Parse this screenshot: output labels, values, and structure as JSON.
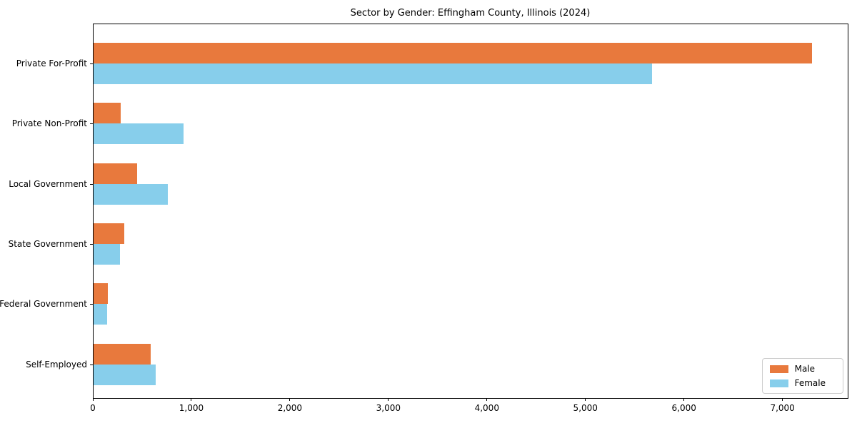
{
  "chart_data": {
    "type": "bar",
    "orientation": "horizontal",
    "title": "Sector by Gender: Effingham County, Illinois (2024)",
    "categories": [
      "Private For-Profit",
      "Private Non-Profit",
      "Local Government",
      "State Government",
      "Federal Government",
      "Self-Employed"
    ],
    "series": [
      {
        "name": "Male",
        "color": "#E8793D",
        "values": [
          7290,
          275,
          440,
          310,
          145,
          580
        ]
      },
      {
        "name": "Female",
        "color": "#87CEEB",
        "values": [
          5670,
          910,
          755,
          265,
          140,
          630
        ]
      }
    ],
    "xlim": [
      0,
      7655
    ],
    "x_ticks": [
      0,
      1000,
      2000,
      3000,
      4000,
      5000,
      6000,
      7000
    ],
    "x_tick_labels": [
      "0",
      "1,000",
      "2,000",
      "3,000",
      "4,000",
      "5,000",
      "6,000",
      "7,000"
    ],
    "xlabel": "",
    "ylabel": "",
    "grid": false,
    "legend_position": "lower right",
    "bar_group_order": [
      "Male top",
      "Female bottom"
    ]
  },
  "colors": {
    "male": "#E8793D",
    "female": "#87CEEB",
    "spine": "#000000",
    "legend_border": "#CCCCCC",
    "background": "#FFFFFF"
  },
  "legend": {
    "items": [
      {
        "label": "Male"
      },
      {
        "label": "Female"
      }
    ]
  }
}
